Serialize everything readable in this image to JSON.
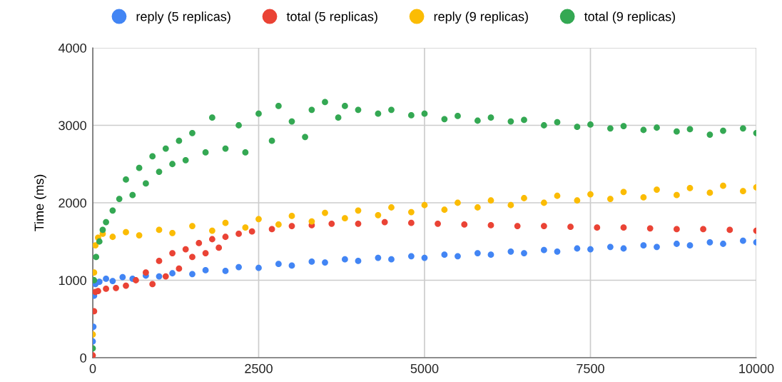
{
  "chart_data": {
    "type": "scatter",
    "ylabel": "Time (ms)",
    "xlim": [
      0,
      10000
    ],
    "ylim": [
      0,
      4000
    ],
    "xticks": [
      0,
      2500,
      5000,
      7500,
      10000
    ],
    "yticks": [
      0,
      1000,
      2000,
      3000,
      4000
    ],
    "grid": true,
    "legend": "top",
    "marker": "circle",
    "series": [
      {
        "name": "reply (5 replicas)",
        "color": "#4285f4",
        "x": [
          0,
          10,
          20,
          40,
          60,
          100,
          200,
          300,
          450,
          600,
          800,
          1000,
          1200,
          1500,
          1700,
          2000,
          2200,
          2500,
          2800,
          3000,
          3300,
          3500,
          3800,
          4000,
          4300,
          4500,
          4800,
          5000,
          5300,
          5500,
          5800,
          6000,
          6300,
          6500,
          6800,
          7000,
          7300,
          7500,
          7800,
          8000,
          8300,
          8500,
          8800,
          9000,
          9300,
          9500,
          9800,
          10000
        ],
        "values": [
          210,
          400,
          800,
          950,
          null,
          980,
          1020,
          990,
          1040,
          1020,
          1060,
          1050,
          1090,
          1080,
          1130,
          1120,
          1170,
          1160,
          1210,
          1190,
          1240,
          1230,
          1270,
          1250,
          1290,
          1270,
          1310,
          1290,
          1330,
          1310,
          1350,
          1330,
          1370,
          1350,
          1390,
          1370,
          1410,
          1400,
          1430,
          1410,
          1450,
          1430,
          1470,
          1450,
          1490,
          1470,
          1510,
          1490
        ]
      },
      {
        "name": "total (5 replicas)",
        "color": "#ea4335",
        "x": [
          0,
          20,
          40,
          80,
          200,
          350,
          500,
          650,
          800,
          900,
          1000,
          1100,
          1200,
          1300,
          1400,
          1500,
          1600,
          1700,
          1800,
          1900,
          2000,
          2200,
          2400,
          2700,
          3000,
          3300,
          3600,
          4000,
          4400,
          4800,
          5200,
          5600,
          6000,
          6400,
          6800,
          7200,
          7600,
          8000,
          8400,
          8800,
          9200,
          9600,
          10000
        ],
        "values": [
          30,
          600,
          850,
          860,
          890,
          900,
          930,
          1000,
          1100,
          950,
          1250,
          1050,
          1350,
          1150,
          1400,
          1300,
          1480,
          1350,
          1530,
          1420,
          1560,
          1600,
          1630,
          1660,
          1700,
          1710,
          1730,
          1730,
          1750,
          1740,
          1730,
          1720,
          1710,
          1700,
          1700,
          1690,
          1680,
          1680,
          1670,
          1660,
          1660,
          1650,
          1640
        ]
      },
      {
        "name": "reply (9 replicas)",
        "color": "#fbbc04",
        "x": [
          0,
          20,
          40,
          80,
          150,
          300,
          500,
          700,
          1000,
          1200,
          1500,
          1800,
          2000,
          2300,
          2500,
          2800,
          3000,
          3300,
          3500,
          3800,
          4000,
          4300,
          4500,
          4800,
          5000,
          5300,
          5500,
          5800,
          6000,
          6300,
          6500,
          6800,
          7000,
          7300,
          7500,
          7800,
          8000,
          8300,
          8500,
          8800,
          9000,
          9300,
          9500,
          9800,
          10000
        ],
        "values": [
          300,
          1100,
          1450,
          1550,
          1600,
          1560,
          1620,
          1580,
          1650,
          1610,
          1700,
          1640,
          1740,
          1680,
          1790,
          1720,
          1830,
          1760,
          1870,
          1800,
          1900,
          1840,
          1940,
          1880,
          1970,
          1910,
          2000,
          1940,
          2030,
          1970,
          2060,
          2000,
          2090,
          2030,
          2110,
          2050,
          2140,
          2070,
          2170,
          2100,
          2190,
          2130,
          2220,
          2150,
          2200
        ]
      },
      {
        "name": "total (9 replicas)",
        "color": "#34a853",
        "x": [
          0,
          20,
          50,
          100,
          150,
          200,
          300,
          400,
          500,
          600,
          700,
          800,
          900,
          1000,
          1100,
          1200,
          1300,
          1400,
          1500,
          1700,
          1800,
          2000,
          2200,
          2300,
          2500,
          2700,
          2800,
          3000,
          3200,
          3300,
          3500,
          3700,
          3800,
          4000,
          4300,
          4500,
          4800,
          5000,
          5300,
          5500,
          5800,
          6000,
          6300,
          6500,
          6800,
          7000,
          7300,
          7500,
          7800,
          8000,
          8300,
          8500,
          8800,
          9000,
          9300,
          9500,
          9800,
          10000
        ],
        "values": [
          120,
          1000,
          1300,
          1500,
          1650,
          1750,
          1900,
          2050,
          2300,
          2100,
          2450,
          2250,
          2600,
          2400,
          2700,
          2500,
          2800,
          2550,
          2900,
          2650,
          3100,
          2700,
          3000,
          2650,
          3150,
          2800,
          3250,
          3050,
          2850,
          3200,
          3300,
          3100,
          3250,
          3200,
          3150,
          3200,
          3130,
          3150,
          3080,
          3120,
          3060,
          3100,
          3050,
          3070,
          3000,
          3040,
          2980,
          3010,
          2960,
          2990,
          2940,
          2970,
          2920,
          2950,
          2880,
          2930,
          2960,
          2900
        ]
      }
    ]
  }
}
